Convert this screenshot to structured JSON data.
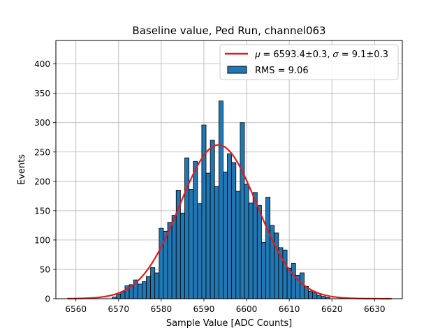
{
  "chart_data": {
    "type": "bar",
    "title": "Baseline value, Ped Run, channel063",
    "xlabel": "Sample Value [ADC Counts]",
    "ylabel": "Events",
    "xlim": [
      6555.3,
      6636.5
    ],
    "ylim": [
      0,
      440
    ],
    "xticks": [
      6560,
      6570,
      6580,
      6590,
      6600,
      6610,
      6620,
      6630
    ],
    "yticks": [
      0,
      50,
      100,
      150,
      200,
      250,
      300,
      350,
      400
    ],
    "grid": true,
    "legend_position": "top-right",
    "bin_width": 1,
    "bins": [
      6569,
      6570,
      6571,
      6572,
      6573,
      6574,
      6575,
      6576,
      6577,
      6578,
      6579,
      6580,
      6581,
      6582,
      6583,
      6584,
      6585,
      6586,
      6587,
      6588,
      6589,
      6590,
      6591,
      6592,
      6593,
      6594,
      6595,
      6596,
      6597,
      6598,
      6599,
      6600,
      6601,
      6602,
      6603,
      6604,
      6605,
      6606,
      6607,
      6608,
      6609,
      6610,
      6611,
      6612,
      6613,
      6614,
      6615,
      6616,
      6617,
      6618,
      6619
    ],
    "counts": [
      3,
      8,
      12,
      22,
      24,
      32,
      25,
      29,
      38,
      53,
      44,
      120,
      115,
      130,
      142,
      185,
      146,
      240,
      186,
      234,
      162,
      296,
      214,
      270,
      191,
      337,
      216,
      247,
      232,
      183,
      300,
      195,
      163,
      181,
      159,
      96,
      173,
      125,
      112,
      87,
      83,
      52,
      60,
      40,
      44,
      21,
      13,
      10,
      6,
      4,
      2
    ],
    "fit": {
      "mu": 6593.4,
      "sigma": 9.1,
      "amplitude": 262,
      "x_range": [
        6558,
        6634
      ]
    },
    "colors": {
      "bar_fill": "#1f77b4",
      "bar_edge": "#000000",
      "fit_line": "#e41a1c",
      "grid": "#b0b0b0"
    },
    "legend": {
      "fit_label": "𝜇 = 6593.4±0.3, 𝜎 = 9.1±0.3",
      "hist_label": "RMS = 9.06"
    }
  }
}
